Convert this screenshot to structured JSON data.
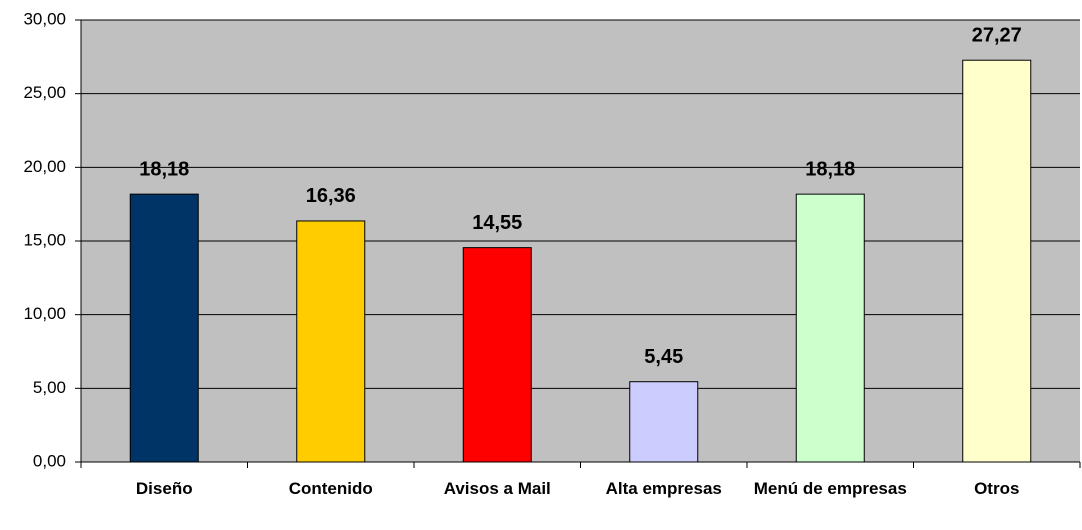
{
  "chart_data": {
    "type": "bar",
    "categories": [
      "Diseño",
      "Contenido",
      "Avisos a Mail",
      "Alta empresas",
      "Menú de empresas",
      "Otros"
    ],
    "values": [
      18.18,
      16.36,
      14.55,
      5.45,
      18.18,
      27.27
    ],
    "value_labels": [
      "18,18",
      "16,36",
      "14,55",
      "5,45",
      "18,18",
      "27,27"
    ],
    "colors": [
      "#003366",
      "#ffcc00",
      "#ff0000",
      "#ccccff",
      "#ccffcc",
      "#ffffcc"
    ],
    "ylim": [
      0,
      30
    ],
    "yticks": [
      {
        "value": 0,
        "label": "0,00"
      },
      {
        "value": 5,
        "label": "5,00"
      },
      {
        "value": 10,
        "label": "10,00"
      },
      {
        "value": 15,
        "label": "15,00"
      },
      {
        "value": 20,
        "label": "20,00"
      },
      {
        "value": 25,
        "label": "25,00"
      },
      {
        "value": 30,
        "label": "30,00"
      }
    ],
    "grid": true
  }
}
